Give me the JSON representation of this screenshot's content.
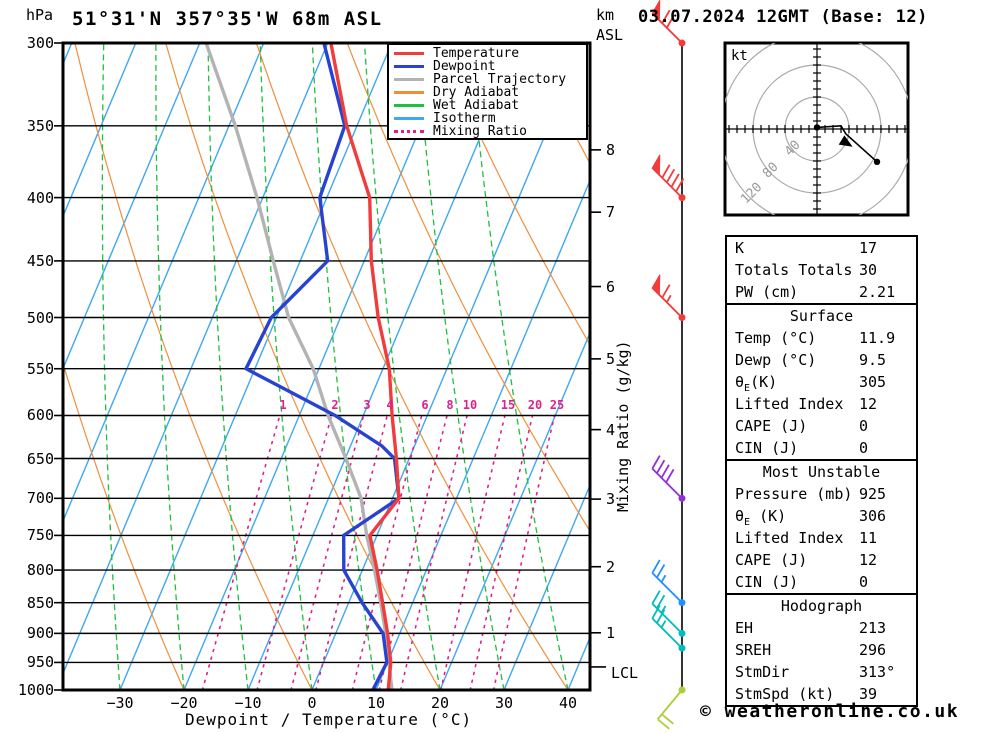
{
  "title": "51°31'N 357°35'W 68m ASL",
  "datetime": "03.07.2024 12GMT (Base: 12)",
  "copyright": "© weatheronline.co.uk",
  "axes": {
    "pressure_unit": "hPa",
    "pressure_labels": [
      300,
      350,
      400,
      450,
      500,
      550,
      600,
      650,
      700,
      750,
      800,
      850,
      900,
      950,
      1000
    ],
    "x_ticks": [
      -30,
      -20,
      -10,
      0,
      10,
      20,
      30,
      40
    ],
    "x_label": "Dewpoint / Temperature (°C)",
    "km_unit": "km",
    "km_asl": "ASL",
    "km_ticks": [
      8,
      7,
      6,
      5,
      4,
      3,
      2,
      1
    ],
    "lcl_label": "LCL",
    "mixing_axis_label": "Mixing Ratio (g/kg)",
    "mixing_ratio_labels": [
      1,
      2,
      3,
      4,
      6,
      8,
      10,
      15,
      20,
      25
    ]
  },
  "legend": [
    {
      "label": "Temperature",
      "color": "#f13c3c",
      "style": "solid"
    },
    {
      "label": "Dewpoint",
      "color": "#2743cf",
      "style": "solid"
    },
    {
      "label": "Parcel Trajectory",
      "color": "#b3b3b3",
      "style": "solid"
    },
    {
      "label": "Dry Adiabat",
      "color": "#ef8f3c",
      "style": "solid"
    },
    {
      "label": "Wet Adiabat",
      "color": "#1fbf3f",
      "style": "solid"
    },
    {
      "label": "Isotherm",
      "color": "#3fa8ef",
      "style": "solid"
    },
    {
      "label": "Mixing Ratio",
      "color": "#e0218a",
      "style": "dotted"
    }
  ],
  "chart_data": {
    "type": "line",
    "subtype": "skew-t log-p sounding",
    "pressure_range_hpa": [
      300,
      1000
    ],
    "temp_axis_c": [
      -35,
      40
    ],
    "series": [
      {
        "name": "Temperature",
        "color": "#f13c3c",
        "points_p_t": [
          [
            300,
            -39.5
          ],
          [
            350,
            -31.6
          ],
          [
            400,
            -23.3
          ],
          [
            450,
            -18.9
          ],
          [
            500,
            -14.1
          ],
          [
            550,
            -9.0
          ],
          [
            600,
            -5.5
          ],
          [
            650,
            -2.0
          ],
          [
            700,
            1.0
          ],
          [
            750,
            -1.1
          ],
          [
            800,
            2.3
          ],
          [
            850,
            5.3
          ],
          [
            900,
            8.1
          ],
          [
            950,
            10.5
          ],
          [
            1000,
            11.9
          ]
        ]
      },
      {
        "name": "Dewpoint",
        "color": "#2743cf",
        "points_p_t": [
          [
            300,
            -40.6
          ],
          [
            350,
            -31.9
          ],
          [
            400,
            -31.1
          ],
          [
            450,
            -25.7
          ],
          [
            500,
            -30.8
          ],
          [
            550,
            -31.4
          ],
          [
            600,
            -14.4
          ],
          [
            635,
            -5.1
          ],
          [
            650,
            -2.3
          ],
          [
            700,
            1.0
          ],
          [
            750,
            -5.2
          ],
          [
            800,
            -2.9
          ],
          [
            850,
            2.1
          ],
          [
            900,
            7.4
          ],
          [
            950,
            9.9
          ],
          [
            1000,
            9.5
          ]
        ]
      },
      {
        "name": "Parcel Trajectory",
        "color": "#b3b3b3",
        "points_p_t": [
          [
            300,
            -59.0
          ],
          [
            350,
            -49.0
          ],
          [
            400,
            -40.9
          ],
          [
            450,
            -34.2
          ],
          [
            500,
            -28.1
          ],
          [
            550,
            -20.9
          ],
          [
            600,
            -15.5
          ],
          [
            650,
            -9.9
          ],
          [
            700,
            -4.9
          ],
          [
            750,
            -1.6
          ],
          [
            800,
            1.9
          ],
          [
            850,
            5.0
          ],
          [
            900,
            7.8
          ],
          [
            950,
            10.2
          ],
          [
            1000,
            12.5
          ]
        ]
      }
    ],
    "wind_barbs": [
      {
        "p": 300,
        "flags": 1,
        "full": 2,
        "half": 0,
        "color": "#f13c3c"
      },
      {
        "p": 400,
        "flags": 1,
        "full": 4,
        "half": 0,
        "color": "#f13c3c"
      },
      {
        "p": 500,
        "flags": 1,
        "full": 1,
        "half": 1,
        "color": "#f13c3c"
      },
      {
        "p": 700,
        "flags": 0,
        "full": 4,
        "half": 0,
        "color": "#9130d9"
      },
      {
        "p": 850,
        "flags": 0,
        "full": 2,
        "half": 1,
        "color": "#1e90ff"
      },
      {
        "p": 900,
        "flags": 0,
        "full": 2,
        "half": 1,
        "color": "#00bcbc"
      },
      {
        "p": 925,
        "flags": 0,
        "full": 2,
        "half": 1,
        "color": "#00bcbc"
      },
      {
        "p": 1000,
        "flags": 0,
        "full": 2,
        "half": 0,
        "color": "#aacf3a",
        "surface": true
      }
    ],
    "hodograph": {
      "unit": "kt",
      "rings_kt": [
        40,
        80,
        120
      ],
      "trace_uv_kt": [
        [
          0,
          -2
        ],
        [
          30,
          -4
        ],
        [
          36,
          6
        ],
        [
          75,
          41
        ]
      ],
      "arrow_uv_kt": [
        36,
        17
      ]
    },
    "km_tick_pressures": [
      366,
      411,
      472,
      540,
      616,
      701,
      795,
      899
    ],
    "lcl_pressure": 958
  },
  "tables": [
    {
      "name": "indices",
      "rows": [
        [
          "K",
          "17"
        ],
        [
          "Totals Totals",
          "30"
        ],
        [
          "PW (cm)",
          "2.21"
        ]
      ]
    },
    {
      "name": "surface",
      "header": "Surface",
      "rows": [
        [
          "Temp (°C)",
          "11.9"
        ],
        [
          "Dewp (°C)",
          "9.5"
        ],
        [
          "θ_E(K)",
          "305"
        ],
        [
          "Lifted Index",
          "12"
        ],
        [
          "CAPE (J)",
          "0"
        ],
        [
          "CIN (J)",
          "0"
        ]
      ]
    },
    {
      "name": "most-unstable",
      "header": "Most Unstable",
      "rows": [
        [
          "Pressure (mb)",
          "925"
        ],
        [
          "θ_E (K)",
          "306"
        ],
        [
          "Lifted Index",
          "11"
        ],
        [
          "CAPE (J)",
          "12"
        ],
        [
          "CIN (J)",
          "0"
        ]
      ]
    },
    {
      "name": "hodograph",
      "header": "Hodograph",
      "rows": [
        [
          "EH",
          "213"
        ],
        [
          "SREH",
          "296"
        ],
        [
          "StmDir",
          "313°"
        ],
        [
          "StmSpd (kt)",
          "39"
        ]
      ]
    }
  ],
  "hodograph_labels": {
    "unit": "kt",
    "rings": [
      "40",
      "80",
      "120"
    ]
  }
}
